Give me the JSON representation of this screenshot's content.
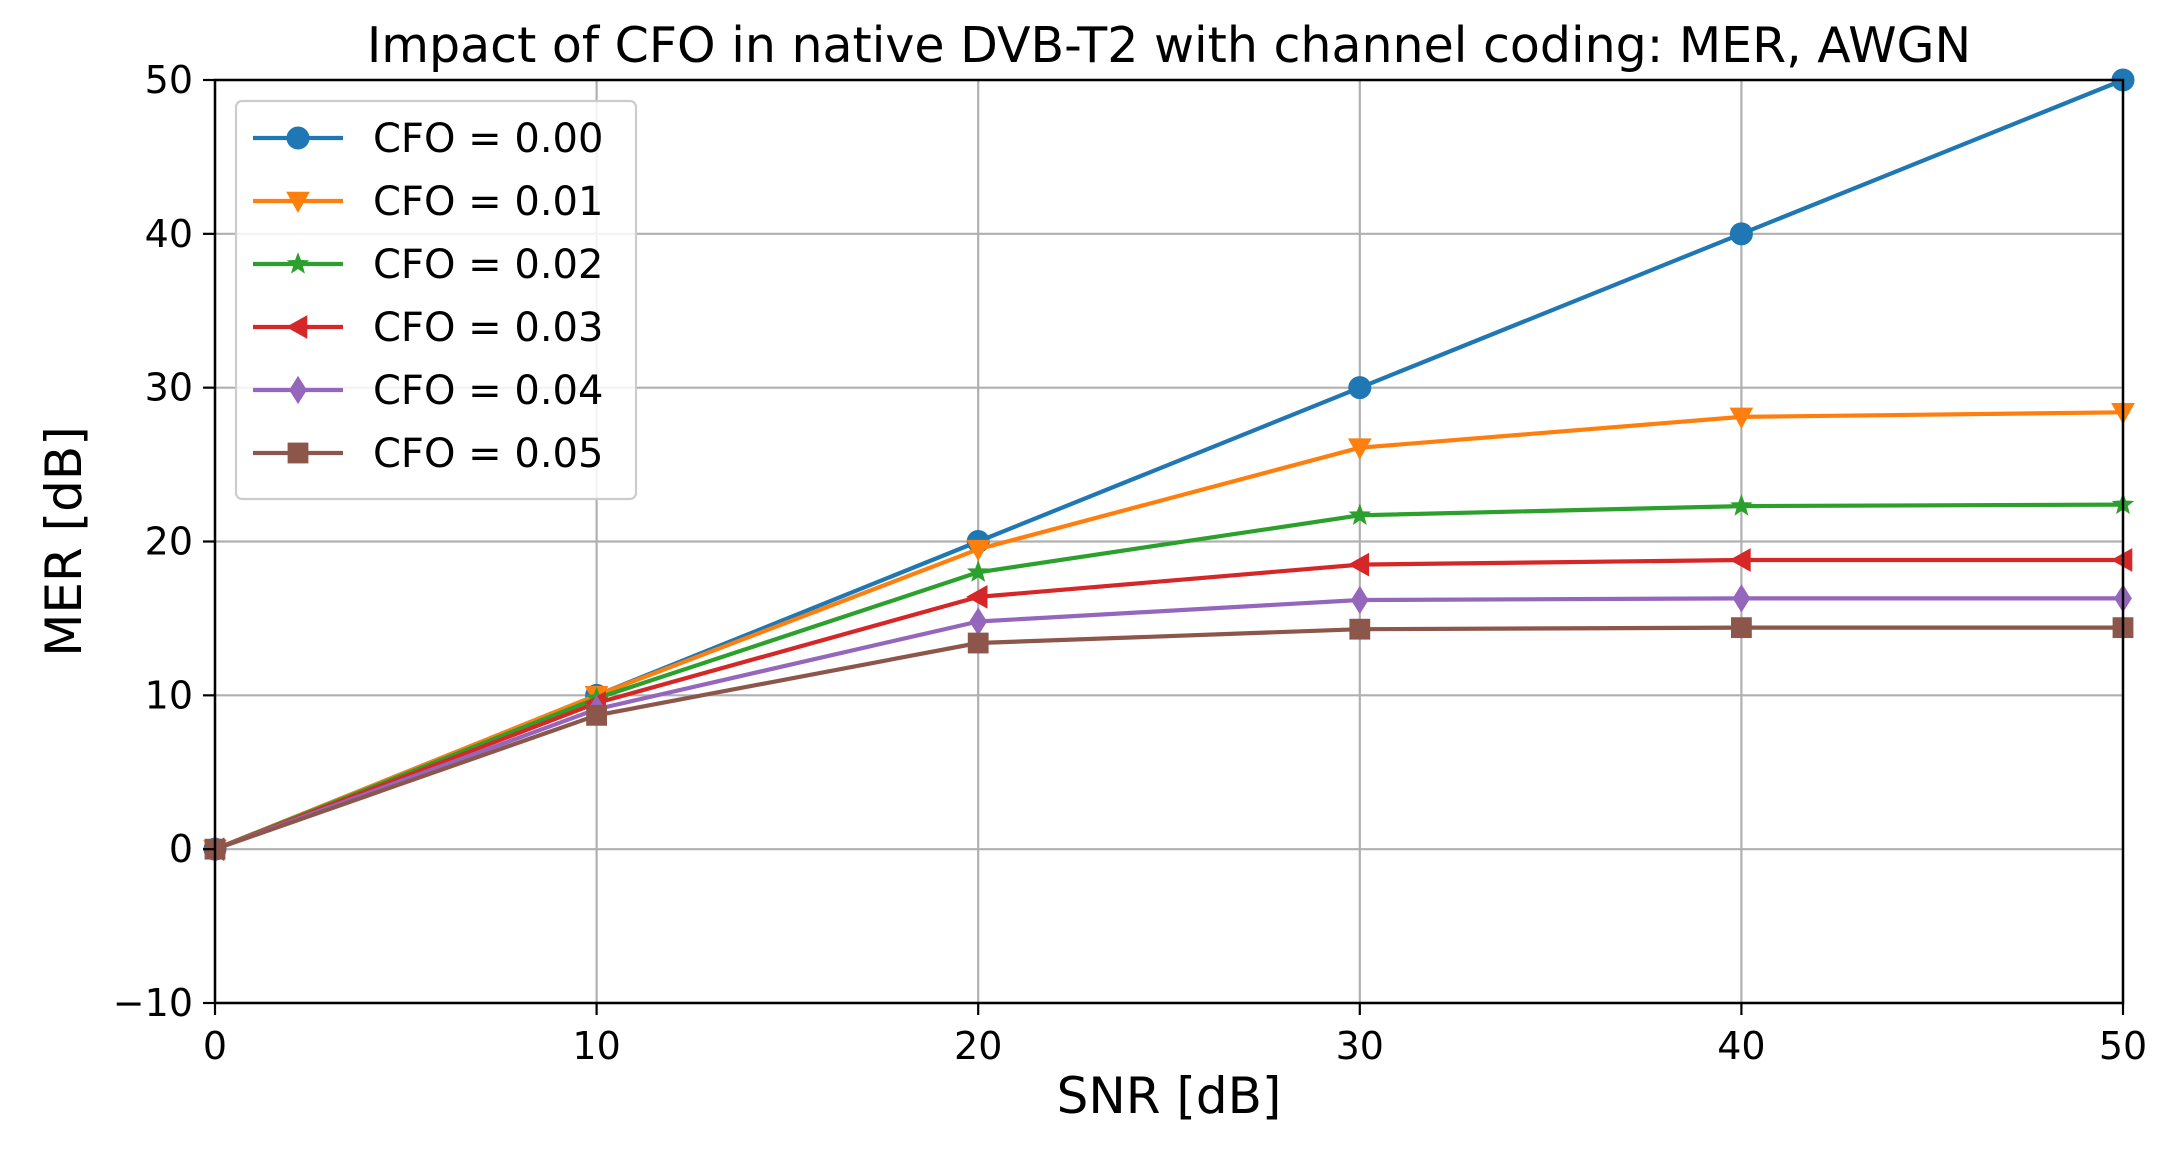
{
  "chart_data": {
    "type": "line",
    "title": "Impact of CFO in native DVB-T2 with channel coding: MER, AWGN",
    "xlabel": "SNR [dB]",
    "ylabel": "MER [dB]",
    "xlim": [
      0,
      50
    ],
    "ylim": [
      -10,
      50
    ],
    "grid": true,
    "legend_position": "top-left",
    "x": [
      0,
      10,
      20,
      30,
      40,
      50
    ],
    "x_ticks": [
      0,
      10,
      20,
      30,
      40,
      50
    ],
    "x_tick_labels": [
      "0",
      "10",
      "20",
      "30",
      "40",
      "50"
    ],
    "y_ticks": [
      -10,
      0,
      10,
      20,
      30,
      40,
      50
    ],
    "y_tick_labels": [
      "−10",
      "0",
      "10",
      "20",
      "30",
      "40",
      "50"
    ],
    "series": [
      {
        "name": "CFO = 0.00",
        "color": "#1f77b4",
        "marker": "circle",
        "values": [
          0,
          10,
          20,
          30,
          40,
          50
        ]
      },
      {
        "name": "CFO = 0.01",
        "color": "#ff7f0e",
        "marker": "triangle-down",
        "values": [
          0,
          10,
          19.5,
          26.1,
          28.1,
          28.4
        ]
      },
      {
        "name": "CFO = 0.02",
        "color": "#2ca02c",
        "marker": "star",
        "values": [
          0,
          9.8,
          18.0,
          21.7,
          22.3,
          22.4
        ]
      },
      {
        "name": "CFO = 0.03",
        "color": "#d62728",
        "marker": "triangle-left",
        "values": [
          0,
          9.5,
          16.4,
          18.5,
          18.8,
          18.8
        ]
      },
      {
        "name": "CFO = 0.04",
        "color": "#9467bd",
        "marker": "diamond",
        "values": [
          0,
          9.1,
          14.8,
          16.2,
          16.3,
          16.3
        ]
      },
      {
        "name": "CFO = 0.05",
        "color": "#8c564b",
        "marker": "square",
        "values": [
          0,
          8.7,
          13.4,
          14.3,
          14.4,
          14.4
        ]
      }
    ]
  }
}
